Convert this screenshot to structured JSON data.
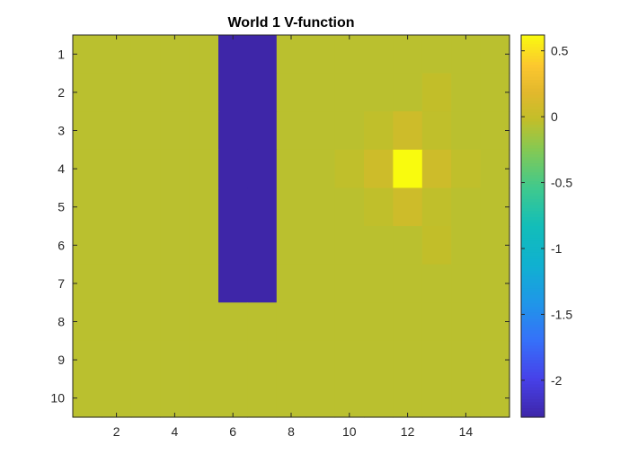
{
  "chart_data": {
    "type": "heatmap",
    "title": "World 1 V-function",
    "xlabel": "",
    "ylabel": "",
    "x_range": [
      0.5,
      15.5
    ],
    "y_range": [
      0.5,
      10.5
    ],
    "y_reversed": true,
    "x_ticks": [
      2,
      4,
      6,
      8,
      10,
      12,
      14
    ],
    "x_tick_labels": [
      "2",
      "4",
      "6",
      "8",
      "10",
      "12",
      "14"
    ],
    "y_ticks": [
      1,
      2,
      3,
      4,
      5,
      6,
      7,
      8,
      9,
      10
    ],
    "y_tick_labels": [
      "1",
      "2",
      "3",
      "4",
      "5",
      "6",
      "7",
      "8",
      "9",
      "10"
    ],
    "colormap": "parula",
    "clim": [
      -2.28,
      0.62
    ],
    "colorbar": {
      "ticks": [
        0.5,
        0,
        -0.5,
        -1,
        -1.5,
        -2
      ],
      "tick_labels": [
        "0.5",
        "0",
        "-0.5",
        "-1",
        "-1.5",
        "-2"
      ]
    },
    "grid": false,
    "rows": 10,
    "cols": 15,
    "values": [
      [
        -0.05,
        -0.05,
        -0.05,
        -0.05,
        -0.05,
        -2.28,
        -2.28,
        -0.05,
        -0.05,
        -0.05,
        -0.05,
        -0.05,
        -0.05,
        -0.05,
        -0.05
      ],
      [
        -0.05,
        -0.05,
        -0.05,
        -0.05,
        -0.05,
        -2.28,
        -2.28,
        -0.05,
        -0.05,
        -0.05,
        -0.05,
        -0.05,
        -0.02,
        -0.05,
        -0.05
      ],
      [
        -0.05,
        -0.05,
        -0.05,
        -0.05,
        -0.05,
        -2.28,
        -2.28,
        -0.05,
        -0.05,
        -0.05,
        -0.03,
        0.05,
        -0.03,
        -0.05,
        -0.05
      ],
      [
        -0.05,
        -0.05,
        -0.05,
        -0.05,
        -0.05,
        -2.28,
        -2.28,
        -0.05,
        -0.05,
        -0.03,
        0.05,
        0.62,
        0.05,
        -0.03,
        -0.05
      ],
      [
        -0.05,
        -0.05,
        -0.05,
        -0.05,
        -0.05,
        -2.28,
        -2.28,
        -0.05,
        -0.05,
        -0.05,
        -0.03,
        0.05,
        -0.03,
        -0.05,
        -0.05
      ],
      [
        -0.05,
        -0.05,
        -0.05,
        -0.05,
        -0.05,
        -2.28,
        -2.28,
        -0.05,
        -0.05,
        -0.05,
        -0.05,
        -0.05,
        -0.02,
        -0.05,
        -0.05
      ],
      [
        -0.05,
        -0.05,
        -0.05,
        -0.05,
        -0.05,
        -2.28,
        -2.28,
        -0.05,
        -0.05,
        -0.05,
        -0.05,
        -0.05,
        -0.05,
        -0.05,
        -0.05
      ],
      [
        -0.05,
        -0.05,
        -0.05,
        -0.05,
        -0.05,
        -0.05,
        -0.05,
        -0.05,
        -0.05,
        -0.05,
        -0.05,
        -0.05,
        -0.05,
        -0.05,
        -0.05
      ],
      [
        -0.05,
        -0.05,
        -0.05,
        -0.05,
        -0.05,
        -0.05,
        -0.05,
        -0.05,
        -0.05,
        -0.05,
        -0.05,
        -0.05,
        -0.05,
        -0.05,
        -0.05
      ],
      [
        -0.05,
        -0.05,
        -0.05,
        -0.05,
        -0.05,
        -0.05,
        -0.05,
        -0.05,
        -0.05,
        -0.05,
        -0.05,
        -0.05,
        -0.05,
        -0.05,
        -0.05
      ]
    ]
  }
}
